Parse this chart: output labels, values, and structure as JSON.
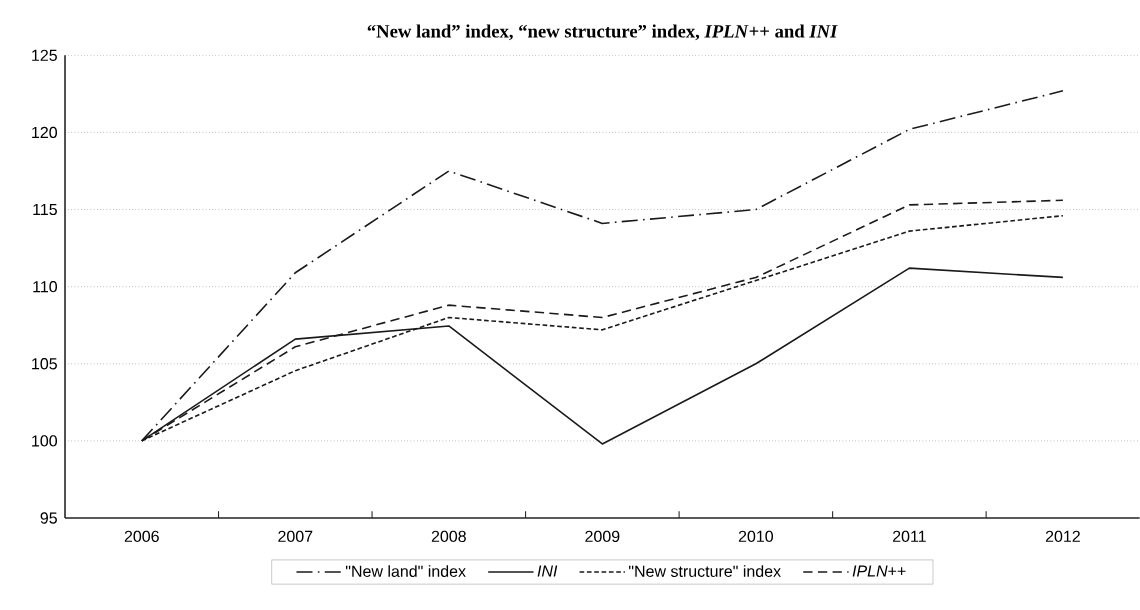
{
  "chart_data": {
    "type": "line",
    "title": "“New land” index, “new structure” index, *IPLN*++ and *INI*",
    "categories": [
      "2006",
      "2007",
      "2008",
      "2009",
      "2010",
      "2011",
      "2012"
    ],
    "series": [
      {
        "name": "\"New land\" index",
        "color": "#1a1a1a",
        "line_style": "dashdot",
        "values": [
          100,
          110.9,
          117.5,
          114.1,
          115.0,
          120.2,
          122.7
        ]
      },
      {
        "name": "*INI*",
        "color": "#1a1a1a",
        "line_style": "solid",
        "values": [
          100,
          106.6,
          107.45,
          99.8,
          105.0,
          111.2,
          110.6
        ]
      },
      {
        "name": "\"New structure\" index",
        "color": "#1a1a1a",
        "line_style": "dotted",
        "values": [
          100,
          104.55,
          108.0,
          107.2,
          110.4,
          113.6,
          114.6
        ]
      },
      {
        "name": "*IPLN*++",
        "color": "#1a1a1a",
        "line_style": "dashed",
        "values": [
          100,
          106.1,
          108.8,
          108.0,
          110.6,
          115.3,
          115.6
        ]
      }
    ],
    "ylim": [
      95,
      125
    ],
    "yticks": [
      95,
      100,
      105,
      110,
      115,
      120,
      125
    ],
    "grid": "y",
    "legend": "bottom"
  }
}
